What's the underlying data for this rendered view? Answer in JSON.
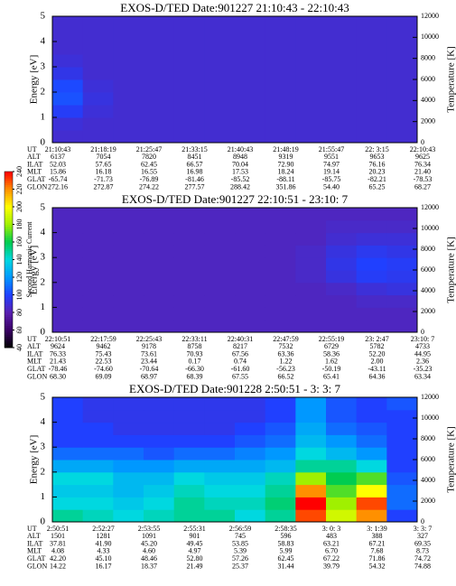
{
  "chart_data": [
    {
      "type": "heatmap",
      "title": "EXOS-D/TED  Date:901227  21:10:43 - 22:10:43",
      "ylabel": "Energy [eV]",
      "y2label": "Temperature [K]",
      "ylim": [
        0,
        5
      ],
      "yticks": [
        0,
        1,
        2,
        3,
        4,
        5
      ],
      "y2lim": [
        0,
        12000
      ],
      "y2ticks": [
        0,
        2000,
        4000,
        6000,
        8000,
        10000,
        12000
      ],
      "z": [
        [
          88,
          88,
          88,
          88,
          88,
          88,
          88,
          88,
          88,
          88,
          88,
          88
        ],
        [
          90,
          88,
          88,
          88,
          88,
          88,
          88,
          88,
          88,
          88,
          88,
          88
        ],
        [
          98,
          90,
          88,
          88,
          88,
          88,
          88,
          88,
          88,
          88,
          88,
          88
        ],
        [
          104,
          92,
          88,
          88,
          88,
          88,
          88,
          88,
          88,
          88,
          88,
          88
        ],
        [
          102,
          90,
          88,
          88,
          88,
          88,
          88,
          88,
          88,
          88,
          88,
          88
        ],
        [
          94,
          88,
          88,
          88,
          88,
          88,
          88,
          88,
          88,
          88,
          88,
          88
        ],
        [
          90,
          88,
          88,
          88,
          88,
          88,
          88,
          88,
          88,
          88,
          88,
          88
        ],
        [
          88,
          88,
          88,
          88,
          88,
          88,
          88,
          88,
          88,
          88,
          88,
          88
        ],
        [
          88,
          88,
          88,
          88,
          88,
          88,
          88,
          88,
          88,
          88,
          88,
          88
        ],
        [
          88,
          88,
          88,
          88,
          88,
          88,
          88,
          88,
          88,
          88,
          88,
          88
        ]
      ],
      "table": [
        {
          "label": "UT",
          "values": [
            "21:10:43",
            "21:18:19",
            "21:25:47",
            "21:33:15",
            "21:40:43",
            "21:48:19",
            "21:55:47",
            "22: 3:15",
            "22:10:43"
          ]
        },
        {
          "label": "ALT",
          "values": [
            "6137",
            "7054",
            "7820",
            "8451",
            "8948",
            "9319",
            "9551",
            "9653",
            "9625"
          ]
        },
        {
          "label": "ILAT",
          "values": [
            "52.03",
            "57.65",
            "62.45",
            "66.57",
            "70.04",
            "72.90",
            "74.97",
            "76.16",
            "76.34"
          ]
        },
        {
          "label": "MLT",
          "values": [
            "15.86",
            "16.18",
            "16.55",
            "16.98",
            "17.53",
            "18.24",
            "19.14",
            "20.23",
            "21.40"
          ]
        },
        {
          "label": "GLAT",
          "values": [
            "-65.74",
            "-71.73",
            "-76.89",
            "-81.46",
            "-85.52",
            "-88.11",
            "-85.75",
            "-82.21",
            "-78.53"
          ]
        },
        {
          "label": "GLON",
          "values": [
            "272.16",
            "272.87",
            "274.22",
            "277.57",
            "288.42",
            "351.86",
            "54.40",
            "65.25",
            "68.27"
          ]
        }
      ]
    },
    {
      "type": "heatmap",
      "title": "EXOS-D/TED   Date:901227  22:10:51 - 23:10: 7",
      "ylabel": "Energy [eV]",
      "y2label": "Temperature [K]",
      "ylim": [
        0,
        5
      ],
      "yticks": [
        0,
        1,
        2,
        3,
        4,
        5
      ],
      "y2lim": [
        0,
        12000
      ],
      "y2ticks": [
        0,
        2000,
        4000,
        6000,
        8000,
        10000,
        12000
      ],
      "z": [
        [
          84,
          84,
          84,
          84,
          84,
          84,
          84,
          84,
          84,
          84,
          84,
          84
        ],
        [
          84,
          84,
          84,
          84,
          84,
          84,
          84,
          84,
          84,
          84,
          84,
          84
        ],
        [
          84,
          84,
          84,
          84,
          84,
          84,
          84,
          84,
          84,
          84,
          86,
          86
        ],
        [
          84,
          84,
          84,
          84,
          84,
          84,
          84,
          84,
          84,
          86,
          90,
          92
        ],
        [
          84,
          84,
          84,
          84,
          84,
          84,
          84,
          84,
          86,
          92,
          98,
          96
        ],
        [
          84,
          84,
          84,
          84,
          84,
          84,
          84,
          84,
          86,
          94,
          100,
          98
        ],
        [
          84,
          84,
          84,
          84,
          84,
          84,
          84,
          84,
          86,
          92,
          96,
          94
        ],
        [
          84,
          84,
          84,
          84,
          84,
          84,
          84,
          84,
          84,
          88,
          90,
          90
        ],
        [
          84,
          84,
          84,
          84,
          84,
          84,
          84,
          84,
          84,
          86,
          86,
          86
        ],
        [
          84,
          84,
          84,
          84,
          84,
          84,
          84,
          84,
          84,
          84,
          84,
          84
        ]
      ],
      "table": [
        {
          "label": "UT",
          "values": [
            "22:10:51",
            "22:17:59",
            "22:25:43",
            "22:33:11",
            "22:40:31",
            "22:47:59",
            "22:55:19",
            "23: 2:47",
            "23:10: 7"
          ]
        },
        {
          "label": "ALT",
          "values": [
            "9624",
            "9462",
            "9178",
            "8758",
            "8217",
            "7532",
            "6729",
            "5782",
            "4733"
          ]
        },
        {
          "label": "ILAT",
          "values": [
            "76.33",
            "75.43",
            "73.61",
            "70.93",
            "67.56",
            "63.36",
            "58.36",
            "52.20",
            "44.95"
          ]
        },
        {
          "label": "MLT",
          "values": [
            "21.43",
            "22.53",
            "23.44",
            "0.17",
            "0.74",
            "1.22",
            "1.62",
            "2.00",
            "2.36"
          ]
        },
        {
          "label": "GLAT",
          "values": [
            "-78.46",
            "-74.60",
            "-70.64",
            "-66.30",
            "-61.60",
            "-56.23",
            "-50.19",
            "-43.11",
            "-35.23"
          ]
        },
        {
          "label": "GLON",
          "values": [
            "68.30",
            "69.09",
            "68.97",
            "68.39",
            "67.55",
            "66.52",
            "65.41",
            "64.36",
            "63.34"
          ]
        }
      ]
    },
    {
      "type": "heatmap",
      "title": "EXOS-D/TED   Date:901228   2:50:51 -  3: 3: 7",
      "ylabel": "Energy [eV]",
      "y2label": "Temperature [K]",
      "ylim": [
        0,
        5
      ],
      "yticks": [
        0,
        1,
        2,
        3,
        4,
        5
      ],
      "y2lim": [
        0,
        12000
      ],
      "y2ticks": [
        0,
        2000,
        4000,
        6000,
        8000,
        10000,
        12000
      ],
      "z": [
        [
          150,
          145,
          140,
          145,
          150,
          150,
          140,
          150,
          230,
          190,
          220,
          100
        ],
        [
          140,
          140,
          135,
          140,
          150,
          145,
          145,
          155,
          240,
          180,
          230,
          110
        ],
        [
          135,
          135,
          130,
          135,
          145,
          140,
          140,
          150,
          220,
          170,
          200,
          110
        ],
        [
          140,
          140,
          130,
          130,
          140,
          135,
          135,
          145,
          180,
          160,
          170,
          105
        ],
        [
          125,
          125,
          120,
          120,
          125,
          125,
          125,
          130,
          150,
          150,
          140,
          100
        ],
        [
          110,
          110,
          110,
          105,
          110,
          110,
          115,
          120,
          140,
          130,
          120,
          100
        ],
        [
          100,
          100,
          100,
          100,
          100,
          100,
          105,
          110,
          130,
          120,
          110,
          100
        ],
        [
          100,
          100,
          95,
          95,
          95,
          95,
          100,
          105,
          125,
          110,
          105,
          100
        ],
        [
          100,
          95,
          95,
          95,
          95,
          95,
          95,
          100,
          120,
          105,
          100,
          100
        ],
        [
          100,
          95,
          95,
          95,
          95,
          95,
          95,
          100,
          120,
          105,
          100,
          105
        ]
      ],
      "table": [
        {
          "label": "UT",
          "values": [
            "2:50:51",
            "2:52:27",
            "2:53:55",
            "2:55:31",
            "2:56:59",
            "2:58:35",
            "3: 0: 3",
            "3: 1:39",
            "3: 3: 7"
          ]
        },
        {
          "label": "ALT",
          "values": [
            "1501",
            "1281",
            "1091",
            "901",
            "745",
            "596",
            "483",
            "388",
            "327"
          ]
        },
        {
          "label": "ILAT",
          "values": [
            "37.81",
            "41.90",
            "45.20",
            "49.45",
            "53.85",
            "58.83",
            "63.21",
            "67.21",
            "69.35"
          ]
        },
        {
          "label": "MLT",
          "values": [
            "4.08",
            "4.33",
            "4.60",
            "4.97",
            "5.39",
            "5.99",
            "6.70",
            "7.68",
            "8.73"
          ]
        },
        {
          "label": "GLAT",
          "values": [
            "42.20",
            "45.10",
            "48.46",
            "52.80",
            "57.26",
            "62.45",
            "67.22",
            "71.86",
            "74.72"
          ]
        },
        {
          "label": "GLON",
          "values": [
            "14.22",
            "16.17",
            "18.37",
            "21.49",
            "25.37",
            "31.44",
            "39.79",
            "54.32",
            "74.88"
          ]
        }
      ]
    }
  ],
  "colorbar": {
    "label": "Second Harmonic Current",
    "ticks": [
      40,
      60,
      80,
      100,
      120,
      140,
      160,
      180,
      200,
      220,
      240
    ],
    "colors": [
      "#000000",
      "#3a0064",
      "#5a20b0",
      "#2040ff",
      "#0098ff",
      "#00d8e0",
      "#00cc50",
      "#a0f000",
      "#ffff00",
      "#ff9000",
      "#ff0000"
    ]
  }
}
